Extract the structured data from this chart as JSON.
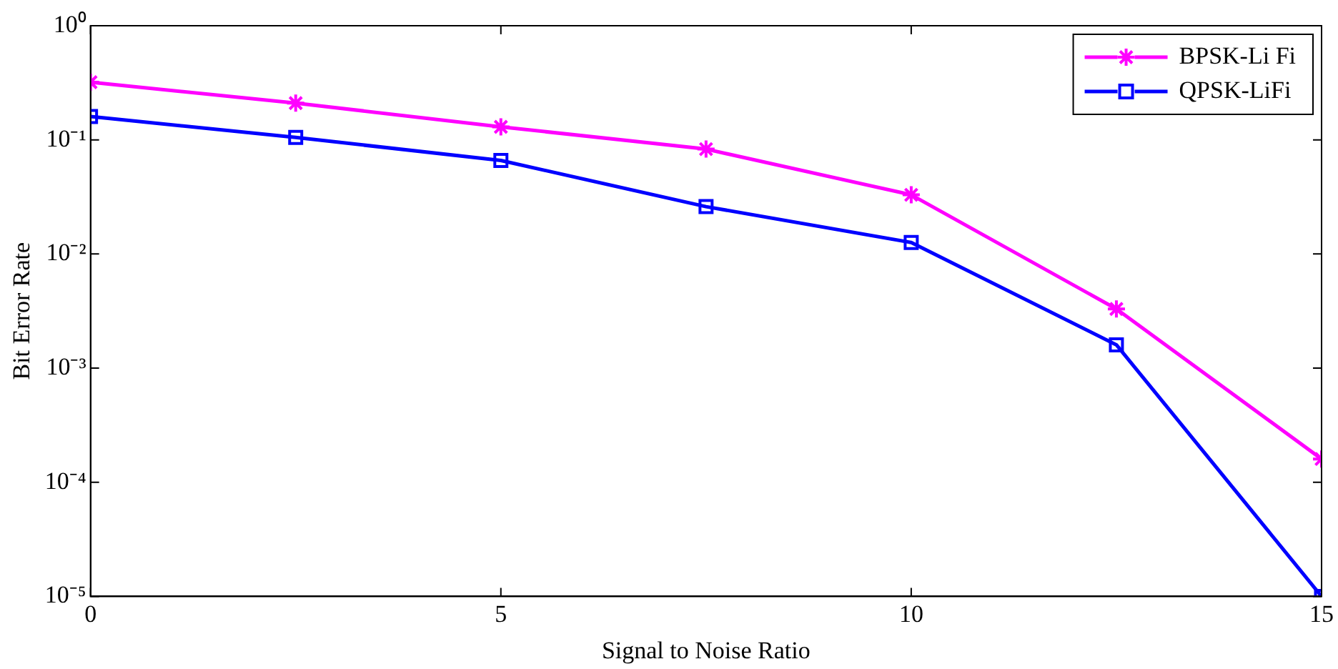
{
  "chart_data": {
    "type": "line",
    "xlabel": "Signal to Noise Ratio",
    "ylabel": "Bit Error Rate",
    "x": [
      0,
      2.5,
      5,
      7.5,
      10,
      12.5,
      15
    ],
    "series": [
      {
        "name": "BPSK-Li Fi",
        "color": "#ff00ff",
        "marker": "cross",
        "values": [
          0.32,
          0.21,
          0.13,
          0.083,
          0.033,
          0.0033,
          0.00016
        ]
      },
      {
        "name": "QPSK-LiFi",
        "color": "#0000ff",
        "marker": "square",
        "values": [
          0.16,
          0.105,
          0.066,
          0.026,
          0.0126,
          0.0016,
          1e-05
        ]
      }
    ],
    "xlim": [
      0,
      15
    ],
    "xticks": [
      0,
      5,
      10,
      15
    ],
    "log": "y",
    "ylim": [
      1e-05,
      1
    ],
    "yticks": [
      {
        "value": 1e-05,
        "label": "10⁻⁵"
      },
      {
        "value": 0.0001,
        "label": "10⁻⁴"
      },
      {
        "value": 0.001,
        "label": "10⁻³"
      },
      {
        "value": 0.01,
        "label": "10⁻²"
      },
      {
        "value": 0.1,
        "label": "10⁻¹"
      },
      {
        "value": 1,
        "label": "10⁰"
      }
    ],
    "grid": false,
    "legend": "top right",
    "line_style": "solid"
  }
}
